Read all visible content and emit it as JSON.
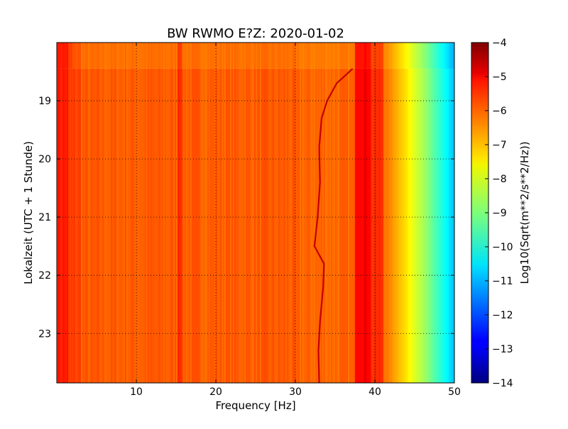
{
  "chart_data": {
    "type": "heatmap",
    "title": "BW RWMO E?Z: 2020-01-02",
    "xlabel": "Frequency [Hz]",
    "ylabel": "Lokalzeit (UTC + 1 Stunde)",
    "xlim": [
      0,
      50
    ],
    "ylim": [
      18.0,
      23.85
    ],
    "y_inverted": true,
    "x_ticks": [
      10,
      20,
      30,
      40,
      50
    ],
    "y_ticks": [
      19,
      20,
      21,
      22,
      23
    ],
    "grid": true,
    "colormap": "jet",
    "colorbar": {
      "label": "Log10(Sqrt(m**2/s**2/Hz))",
      "range": [
        -14,
        -4
      ],
      "ticks": [
        -4,
        -5,
        -6,
        -7,
        -8,
        -9,
        -10,
        -11,
        -12,
        -13,
        -14
      ]
    },
    "features": {
      "data_start_hour": 18.45,
      "low_freq_band_hz": [
        0,
        1.5
      ],
      "band_edge_hz": 15.2,
      "high_band_hz": [
        37.5,
        39.5
      ],
      "rolloff_start_hz": 41,
      "narrow_line": [
        {
          "y": 18.45,
          "x": 37.2
        },
        {
          "y": 18.7,
          "x": 35.2
        },
        {
          "y": 19.0,
          "x": 34.0
        },
        {
          "y": 19.3,
          "x": 33.3
        },
        {
          "y": 19.8,
          "x": 33.0
        },
        {
          "y": 20.4,
          "x": 33.1
        },
        {
          "y": 21.0,
          "x": 32.8
        },
        {
          "y": 21.5,
          "x": 32.4
        },
        {
          "y": 21.8,
          "x": 33.6
        },
        {
          "y": 22.2,
          "x": 33.5
        },
        {
          "y": 22.8,
          "x": 33.1
        },
        {
          "y": 23.3,
          "x": 32.9
        },
        {
          "y": 23.85,
          "x": 33.0
        }
      ]
    }
  }
}
